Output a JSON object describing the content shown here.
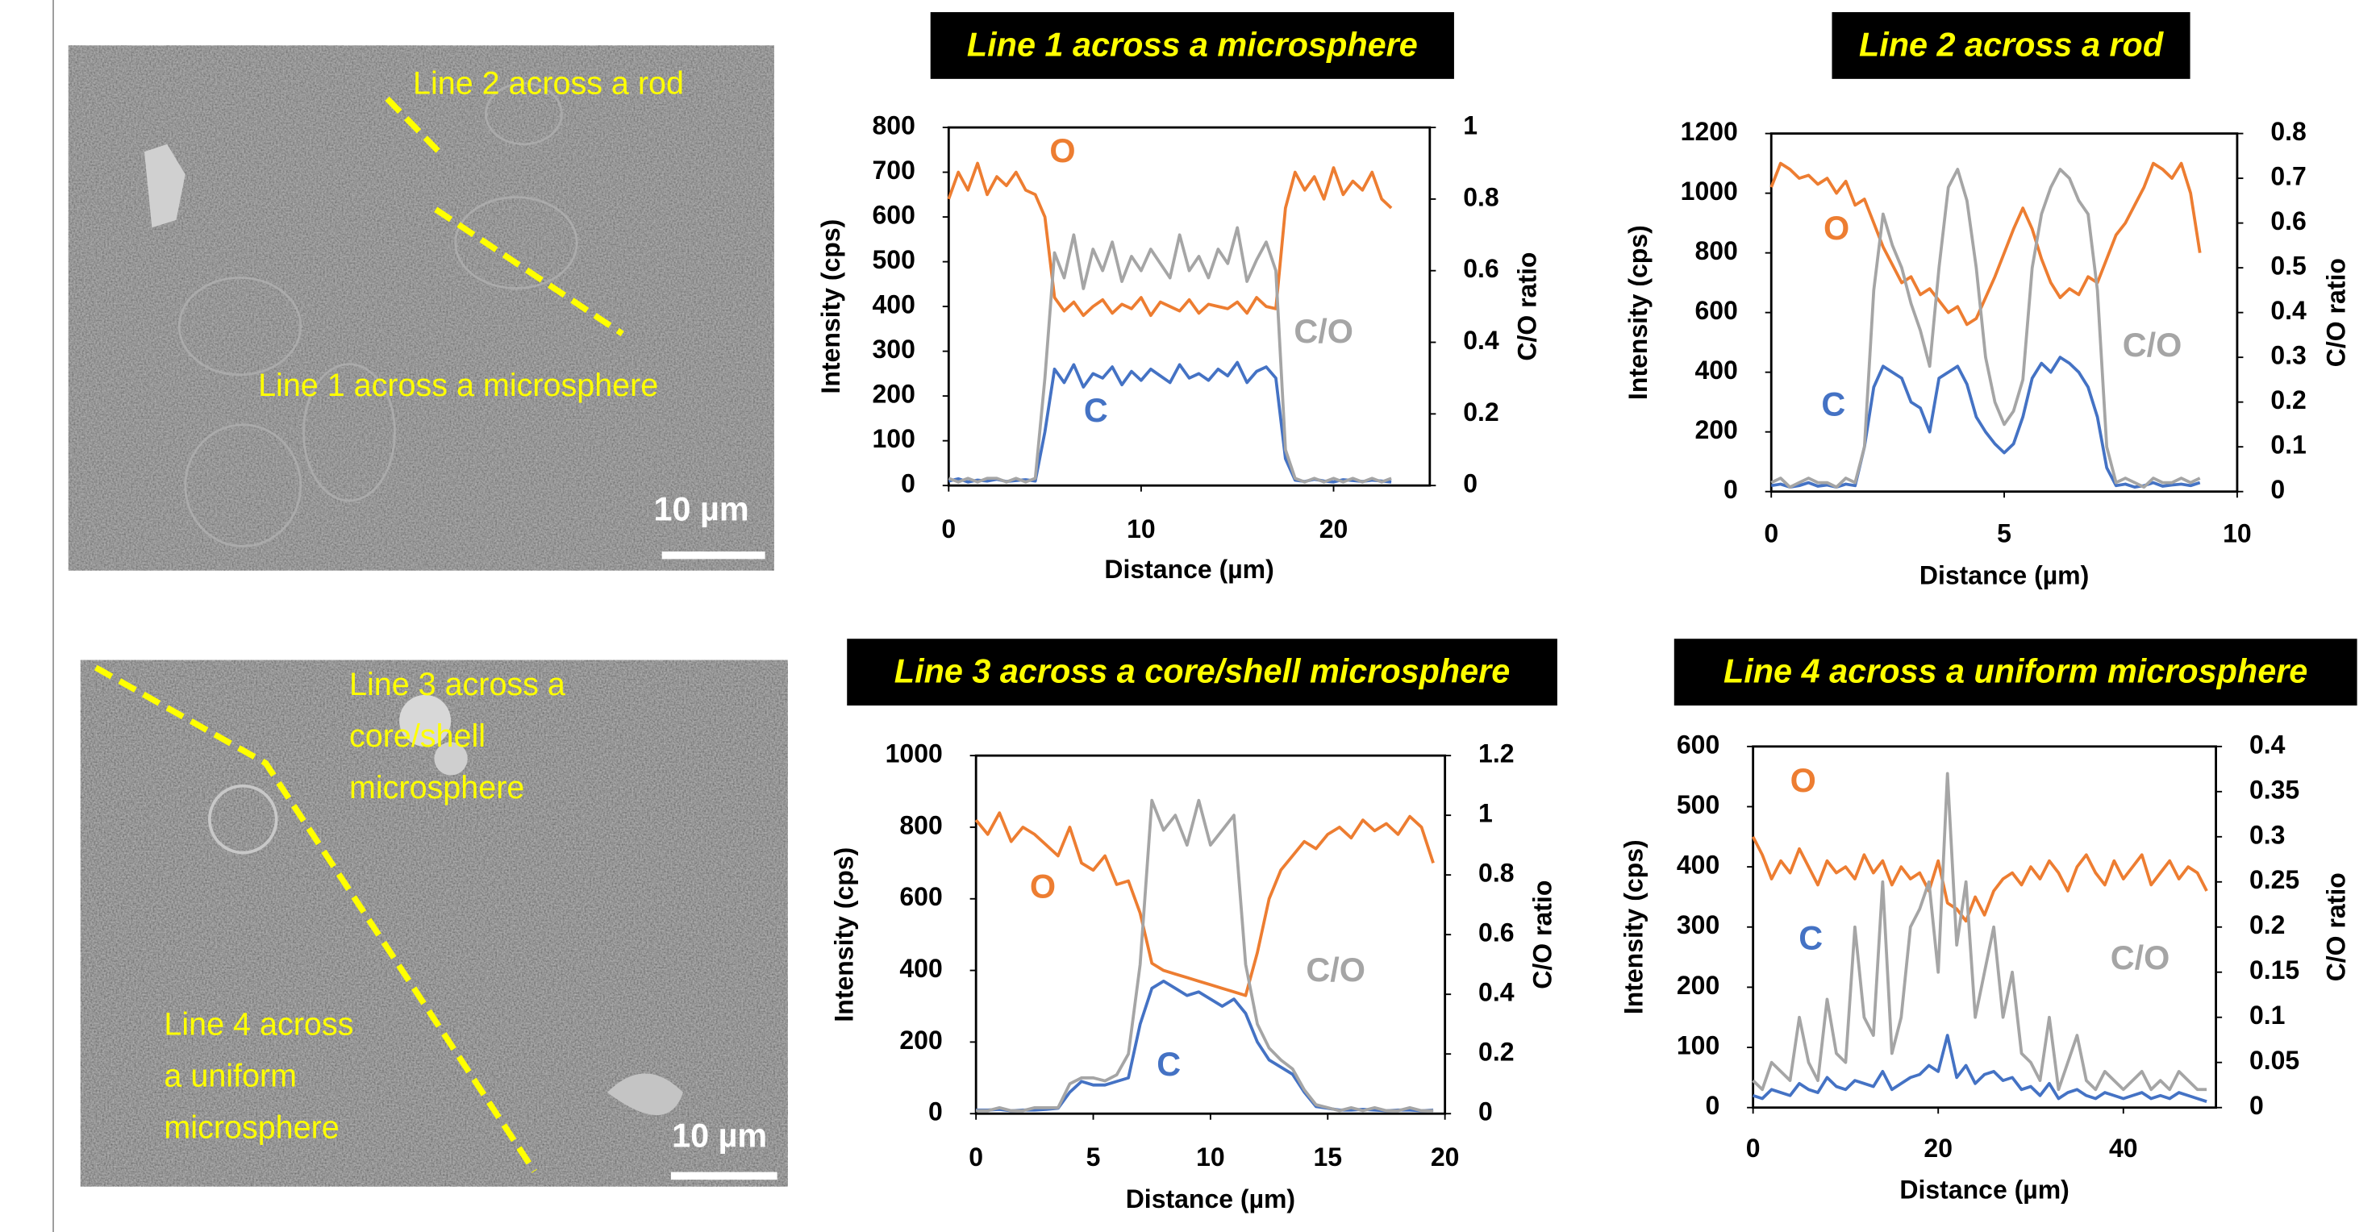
{
  "images": [
    {
      "labels": [
        "Line 2 across a rod",
        "Line 1 across a microsphere"
      ],
      "scale_bar": "10 µm"
    },
    {
      "label_lines": [
        [
          "Line 3 across a",
          "core/shell",
          "microsphere"
        ],
        [
          "Line 4 across",
          "a  uniform",
          "microsphere"
        ]
      ],
      "scale_bar": "10 µm"
    }
  ],
  "chart_data": [
    {
      "type": "line",
      "title": "Line 1 across a microsphere",
      "xlabel": "Distance (µm)",
      "ylabel": "Intensity (cps)",
      "y2label": "C/O ratio",
      "x": [
        0,
        0.5,
        1,
        1.5,
        2,
        2.5,
        3,
        3.5,
        4,
        4.5,
        5,
        5.5,
        6,
        6.5,
        7,
        7.5,
        8,
        8.5,
        9,
        9.5,
        10,
        10.5,
        11,
        11.5,
        12,
        12.5,
        13,
        13.5,
        14,
        14.5,
        15,
        15.5,
        16,
        16.5,
        17,
        17.5,
        18,
        18.5,
        19,
        19.5,
        20,
        20.5,
        21,
        21.5,
        22,
        22.5,
        23
      ],
      "xlim": [
        0,
        25
      ],
      "xticks": [
        0,
        10,
        20
      ],
      "ylim": [
        0,
        800
      ],
      "yticks": [
        0,
        100,
        200,
        300,
        400,
        500,
        600,
        700,
        800
      ],
      "y2lim": [
        0,
        1
      ],
      "y2ticks": [
        0,
        0.2,
        0.4,
        0.6,
        0.8,
        1
      ],
      "series": [
        {
          "name": "O",
          "color": "#ed7d31",
          "values": [
            640,
            700,
            660,
            720,
            650,
            690,
            670,
            700,
            660,
            650,
            600,
            420,
            390,
            410,
            380,
            400,
            415,
            385,
            405,
            395,
            420,
            380,
            410,
            400,
            390,
            415,
            385,
            405,
            400,
            395,
            410,
            385,
            420,
            400,
            395,
            620,
            700,
            660,
            690,
            640,
            710,
            650,
            680,
            660,
            700,
            640,
            620
          ]
        },
        {
          "name": "C",
          "color": "#4472c4",
          "values": [
            10,
            15,
            8,
            12,
            10,
            14,
            9,
            11,
            13,
            10,
            120,
            260,
            230,
            270,
            220,
            250,
            240,
            265,
            225,
            255,
            235,
            260,
            245,
            230,
            270,
            240,
            250,
            235,
            260,
            245,
            275,
            230,
            255,
            265,
            240,
            60,
            12,
            9,
            14,
            10,
            8,
            13,
            11,
            9,
            12,
            10,
            8
          ]
        },
        {
          "name": "C/O",
          "color": "#a5a5a5",
          "axis": "y2",
          "values": [
            0.02,
            0.01,
            0.02,
            0.01,
            0.02,
            0.02,
            0.01,
            0.02,
            0.01,
            0.02,
            0.3,
            0.65,
            0.58,
            0.7,
            0.55,
            0.66,
            0.6,
            0.68,
            0.57,
            0.64,
            0.6,
            0.66,
            0.62,
            0.58,
            0.7,
            0.6,
            0.64,
            0.58,
            0.66,
            0.62,
            0.72,
            0.57,
            0.63,
            0.68,
            0.6,
            0.1,
            0.02,
            0.01,
            0.02,
            0.01,
            0.02,
            0.01,
            0.02,
            0.01,
            0.02,
            0.01,
            0.02
          ]
        }
      ]
    },
    {
      "type": "line",
      "title": "Line 2 across a rod",
      "xlabel": "Distance (µm)",
      "ylabel": "Intensity (cps)",
      "y2label": "C/O ratio",
      "x": [
        0,
        0.2,
        0.4,
        0.6,
        0.8,
        1,
        1.2,
        1.4,
        1.6,
        1.8,
        2,
        2.2,
        2.4,
        2.6,
        2.8,
        3,
        3.2,
        3.4,
        3.6,
        3.8,
        4,
        4.2,
        4.4,
        4.6,
        4.8,
        5,
        5.2,
        5.4,
        5.6,
        5.8,
        6,
        6.2,
        6.4,
        6.6,
        6.8,
        7,
        7.2,
        7.4,
        7.6,
        7.8,
        8,
        8.2,
        8.4,
        8.6,
        8.8,
        9,
        9.2
      ],
      "xlim": [
        0,
        10
      ],
      "xticks": [
        0,
        5,
        10
      ],
      "ylim": [
        0,
        1200
      ],
      "yticks": [
        0,
        200,
        400,
        600,
        800,
        1000,
        1200
      ],
      "y2lim": [
        0,
        0.8
      ],
      "y2ticks": [
        0,
        0.1,
        0.2,
        0.3,
        0.4,
        0.5,
        0.6,
        0.7,
        0.8
      ],
      "series": [
        {
          "name": "O",
          "color": "#ed7d31",
          "values": [
            1020,
            1100,
            1080,
            1050,
            1060,
            1030,
            1050,
            1000,
            1040,
            960,
            980,
            900,
            820,
            760,
            700,
            720,
            660,
            680,
            640,
            600,
            620,
            560,
            580,
            650,
            720,
            800,
            880,
            950,
            880,
            780,
            700,
            650,
            680,
            660,
            720,
            700,
            780,
            860,
            900,
            960,
            1020,
            1100,
            1080,
            1050,
            1100,
            1000,
            800
          ]
        },
        {
          "name": "C",
          "color": "#4472c4",
          "values": [
            20,
            25,
            15,
            20,
            30,
            18,
            22,
            15,
            25,
            20,
            150,
            350,
            420,
            400,
            380,
            300,
            280,
            200,
            380,
            400,
            420,
            360,
            250,
            200,
            160,
            130,
            160,
            250,
            380,
            430,
            400,
            450,
            430,
            400,
            350,
            250,
            80,
            20,
            25,
            15,
            20,
            30,
            18,
            22,
            25,
            20,
            30
          ]
        },
        {
          "name": "C/O",
          "color": "#a5a5a5",
          "axis": "y2",
          "values": [
            0.02,
            0.03,
            0.01,
            0.02,
            0.03,
            0.02,
            0.02,
            0.01,
            0.03,
            0.02,
            0.1,
            0.45,
            0.62,
            0.55,
            0.5,
            0.42,
            0.36,
            0.28,
            0.5,
            0.68,
            0.72,
            0.65,
            0.5,
            0.3,
            0.2,
            0.15,
            0.18,
            0.25,
            0.5,
            0.62,
            0.68,
            0.72,
            0.7,
            0.65,
            0.62,
            0.45,
            0.1,
            0.02,
            0.03,
            0.02,
            0.01,
            0.03,
            0.02,
            0.02,
            0.03,
            0.02,
            0.03
          ]
        }
      ]
    },
    {
      "type": "line",
      "title": "Line 3 across a core/shell microsphere",
      "xlabel": "Distance (µm)",
      "ylabel": "Intensity (cps)",
      "y2label": "C/O ratio",
      "x": [
        0,
        0.5,
        1,
        1.5,
        2,
        2.5,
        3,
        3.5,
        4,
        4.5,
        5,
        5.5,
        6,
        6.5,
        7,
        7.5,
        8,
        8.5,
        9,
        9.5,
        10,
        10.5,
        11,
        11.5,
        12,
        12.5,
        13,
        13.5,
        14,
        14.5,
        15,
        15.5,
        16,
        16.5,
        17,
        17.5,
        18,
        18.5,
        19,
        19.5
      ],
      "xlim": [
        0,
        20
      ],
      "xticks": [
        0,
        5,
        10,
        15,
        20
      ],
      "ylim": [
        0,
        1000
      ],
      "yticks": [
        0,
        200,
        400,
        600,
        800,
        1000
      ],
      "y2lim": [
        0,
        1.2
      ],
      "y2ticks": [
        0,
        0.2,
        0.4,
        0.6,
        0.8,
        1,
        1.2
      ],
      "series": [
        {
          "name": "O",
          "color": "#ed7d31",
          "values": [
            820,
            780,
            840,
            760,
            800,
            780,
            750,
            720,
            800,
            700,
            680,
            720,
            640,
            650,
            560,
            420,
            400,
            390,
            380,
            370,
            360,
            350,
            340,
            330,
            450,
            600,
            680,
            720,
            760,
            740,
            780,
            800,
            770,
            820,
            790,
            810,
            780,
            830,
            800,
            700
          ]
        },
        {
          "name": "C",
          "color": "#4472c4",
          "values": [
            10,
            10,
            12,
            8,
            10,
            10,
            12,
            15,
            60,
            90,
            80,
            80,
            90,
            100,
            250,
            350,
            370,
            350,
            330,
            340,
            320,
            300,
            320,
            280,
            200,
            150,
            130,
            110,
            60,
            20,
            15,
            10,
            10,
            12,
            10,
            8,
            10,
            10,
            8,
            10
          ]
        },
        {
          "name": "C/O",
          "color": "#a5a5a5",
          "axis": "y2",
          "values": [
            0.01,
            0.01,
            0.02,
            0.01,
            0.01,
            0.02,
            0.02,
            0.02,
            0.1,
            0.12,
            0.12,
            0.11,
            0.13,
            0.2,
            0.5,
            1.05,
            0.95,
            1.0,
            0.9,
            1.05,
            0.9,
            0.95,
            1.0,
            0.5,
            0.3,
            0.22,
            0.18,
            0.15,
            0.08,
            0.03,
            0.02,
            0.01,
            0.02,
            0.01,
            0.02,
            0.01,
            0.01,
            0.02,
            0.01,
            0.01
          ]
        }
      ]
    },
    {
      "type": "line",
      "title": "Line 4 across a  uniform microsphere",
      "xlabel": "Distance (µm)",
      "ylabel": "Intensity (cps)",
      "y2label": "C/O ratio",
      "x": [
        0,
        1,
        2,
        3,
        4,
        5,
        6,
        7,
        8,
        9,
        10,
        11,
        12,
        13,
        14,
        15,
        16,
        17,
        18,
        19,
        20,
        21,
        22,
        23,
        24,
        25,
        26,
        27,
        28,
        29,
        30,
        31,
        32,
        33,
        34,
        35,
        36,
        37,
        38,
        39,
        40,
        41,
        42,
        43,
        44,
        45,
        46,
        47,
        48,
        49
      ],
      "xlim": [
        0,
        50
      ],
      "xticks": [
        0,
        20,
        40
      ],
      "ylim": [
        0,
        600
      ],
      "yticks": [
        0,
        100,
        200,
        300,
        400,
        500,
        600
      ],
      "y2lim": [
        0,
        0.4
      ],
      "y2ticks": [
        0,
        0.05,
        0.1,
        0.15,
        0.2,
        0.25,
        0.3,
        0.35,
        0.4
      ],
      "series": [
        {
          "name": "O",
          "color": "#ed7d31",
          "values": [
            450,
            420,
            380,
            410,
            390,
            430,
            400,
            370,
            410,
            390,
            400,
            380,
            420,
            390,
            410,
            370,
            400,
            380,
            390,
            360,
            410,
            340,
            330,
            310,
            350,
            320,
            360,
            380,
            390,
            370,
            400,
            380,
            410,
            390,
            360,
            400,
            420,
            390,
            370,
            410,
            380,
            400,
            420,
            370,
            390,
            410,
            380,
            400,
            390,
            360
          ]
        },
        {
          "name": "C",
          "color": "#4472c4",
          "values": [
            20,
            15,
            30,
            25,
            20,
            40,
            30,
            25,
            50,
            35,
            30,
            45,
            40,
            35,
            60,
            30,
            40,
            50,
            55,
            70,
            60,
            120,
            50,
            70,
            40,
            55,
            60,
            45,
            50,
            30,
            35,
            20,
            40,
            15,
            25,
            30,
            20,
            15,
            25,
            20,
            15,
            20,
            25,
            15,
            20,
            15,
            25,
            20,
            15,
            10
          ]
        },
        {
          "name": "C/O",
          "color": "#a5a5a5",
          "axis": "y2",
          "values": [
            0.03,
            0.02,
            0.05,
            0.04,
            0.03,
            0.1,
            0.05,
            0.03,
            0.12,
            0.06,
            0.05,
            0.2,
            0.1,
            0.08,
            0.25,
            0.06,
            0.1,
            0.2,
            0.22,
            0.25,
            0.15,
            0.37,
            0.18,
            0.25,
            0.1,
            0.15,
            0.2,
            0.1,
            0.15,
            0.06,
            0.05,
            0.03,
            0.1,
            0.02,
            0.05,
            0.08,
            0.03,
            0.02,
            0.04,
            0.03,
            0.02,
            0.03,
            0.04,
            0.02,
            0.03,
            0.02,
            0.04,
            0.03,
            0.02,
            0.02
          ]
        }
      ]
    }
  ]
}
